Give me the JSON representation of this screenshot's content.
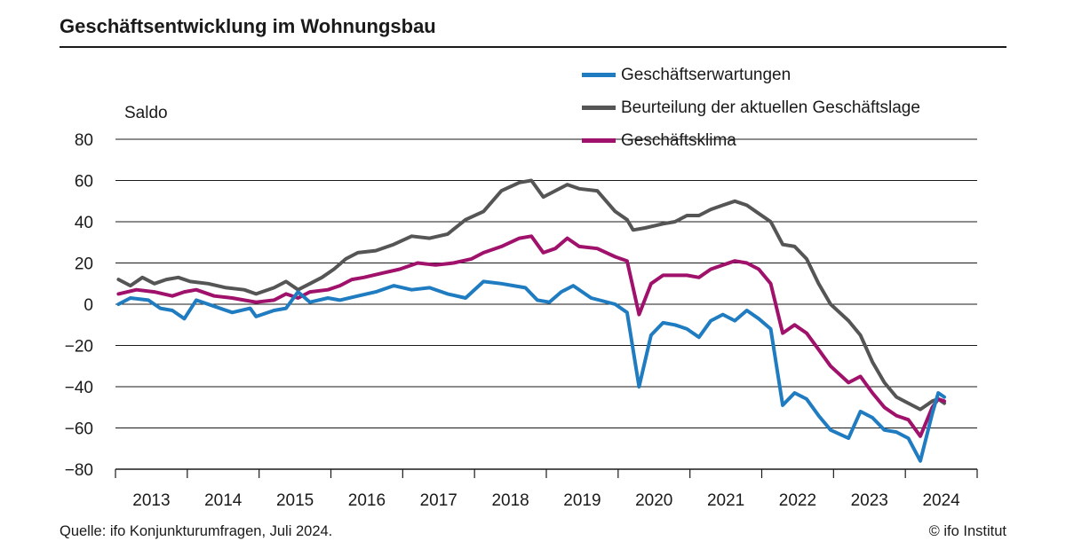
{
  "title": "Geschäftsentwicklung im Wohnungsbau",
  "source": "Quelle: ifo Konjunkturumfragen, Juli 2024.",
  "copyright": "© ifo Institut",
  "chart_data": {
    "type": "line",
    "ylabel": "Saldo",
    "xlabel": "",
    "ylim": [
      -80,
      80
    ],
    "y_ticks": [
      80,
      60,
      40,
      20,
      0,
      -20,
      -40,
      -60,
      -80
    ],
    "x_ticks": [
      "2013",
      "2014",
      "2015",
      "2016",
      "2017",
      "2018",
      "2019",
      "2020",
      "2021",
      "2022",
      "2023",
      "2024"
    ],
    "xlim": [
      "2013-01",
      "2024-12"
    ],
    "grid": "horizontal",
    "legend_position": "top-right",
    "series": [
      {
        "name": "Beurteilung der aktuellen Geschäftslage",
        "color": "#555555",
        "points": [
          [
            "2013-01",
            12
          ],
          [
            "2013-03",
            9
          ],
          [
            "2013-05",
            13
          ],
          [
            "2013-07",
            10
          ],
          [
            "2013-09",
            12
          ],
          [
            "2013-11",
            13
          ],
          [
            "2014-01",
            11
          ],
          [
            "2014-04",
            10
          ],
          [
            "2014-07",
            8
          ],
          [
            "2014-10",
            7
          ],
          [
            "2014-12",
            5
          ],
          [
            "2015-03",
            8
          ],
          [
            "2015-05",
            11
          ],
          [
            "2015-07",
            7
          ],
          [
            "2015-09",
            10
          ],
          [
            "2015-11",
            13
          ],
          [
            "2016-01",
            17
          ],
          [
            "2016-03",
            22
          ],
          [
            "2016-05",
            25
          ],
          [
            "2016-08",
            26
          ],
          [
            "2016-11",
            29
          ],
          [
            "2017-02",
            33
          ],
          [
            "2017-05",
            32
          ],
          [
            "2017-08",
            34
          ],
          [
            "2017-11",
            41
          ],
          [
            "2018-02",
            45
          ],
          [
            "2018-05",
            55
          ],
          [
            "2018-08",
            59
          ],
          [
            "2018-10",
            60
          ],
          [
            "2018-12",
            52
          ],
          [
            "2019-02",
            55
          ],
          [
            "2019-04",
            58
          ],
          [
            "2019-06",
            56
          ],
          [
            "2019-09",
            55
          ],
          [
            "2019-12",
            45
          ],
          [
            "2020-02",
            41
          ],
          [
            "2020-03",
            36
          ],
          [
            "2020-05",
            37
          ],
          [
            "2020-08",
            39
          ],
          [
            "2020-10",
            40
          ],
          [
            "2020-12",
            43
          ],
          [
            "2021-02",
            43
          ],
          [
            "2021-04",
            46
          ],
          [
            "2021-06",
            48
          ],
          [
            "2021-08",
            50
          ],
          [
            "2021-10",
            48
          ],
          [
            "2021-12",
            44
          ],
          [
            "2022-02",
            40
          ],
          [
            "2022-04",
            29
          ],
          [
            "2022-06",
            28
          ],
          [
            "2022-08",
            22
          ],
          [
            "2022-10",
            10
          ],
          [
            "2022-12",
            0
          ],
          [
            "2023-03",
            -8
          ],
          [
            "2023-05",
            -15
          ],
          [
            "2023-07",
            -28
          ],
          [
            "2023-09",
            -38
          ],
          [
            "2023-11",
            -45
          ],
          [
            "2024-01",
            -48
          ],
          [
            "2024-03",
            -51
          ],
          [
            "2024-05",
            -47
          ],
          [
            "2024-06",
            -46
          ],
          [
            "2024-07",
            -48
          ]
        ]
      },
      {
        "name": "Geschäftsklima",
        "color": "#a0116b",
        "points": [
          [
            "2013-01",
            5
          ],
          [
            "2013-04",
            7
          ],
          [
            "2013-07",
            6
          ],
          [
            "2013-10",
            4
          ],
          [
            "2013-12",
            6
          ],
          [
            "2014-02",
            7
          ],
          [
            "2014-05",
            4
          ],
          [
            "2014-08",
            3
          ],
          [
            "2014-10",
            2
          ],
          [
            "2014-12",
            1
          ],
          [
            "2015-03",
            2
          ],
          [
            "2015-05",
            5
          ],
          [
            "2015-07",
            3
          ],
          [
            "2015-09",
            6
          ],
          [
            "2015-12",
            7
          ],
          [
            "2016-02",
            9
          ],
          [
            "2016-04",
            12
          ],
          [
            "2016-06",
            13
          ],
          [
            "2016-09",
            15
          ],
          [
            "2016-12",
            17
          ],
          [
            "2017-03",
            20
          ],
          [
            "2017-06",
            19
          ],
          [
            "2017-09",
            20
          ],
          [
            "2017-12",
            22
          ],
          [
            "2018-02",
            25
          ],
          [
            "2018-05",
            28
          ],
          [
            "2018-08",
            32
          ],
          [
            "2018-10",
            33
          ],
          [
            "2018-12",
            25
          ],
          [
            "2019-02",
            27
          ],
          [
            "2019-04",
            32
          ],
          [
            "2019-06",
            28
          ],
          [
            "2019-09",
            27
          ],
          [
            "2019-12",
            23
          ],
          [
            "2020-02",
            21
          ],
          [
            "2020-04",
            -5
          ],
          [
            "2020-06",
            10
          ],
          [
            "2020-08",
            14
          ],
          [
            "2020-10",
            14
          ],
          [
            "2020-12",
            14
          ],
          [
            "2021-02",
            13
          ],
          [
            "2021-04",
            17
          ],
          [
            "2021-06",
            19
          ],
          [
            "2021-08",
            21
          ],
          [
            "2021-10",
            20
          ],
          [
            "2021-12",
            17
          ],
          [
            "2022-02",
            10
          ],
          [
            "2022-04",
            -14
          ],
          [
            "2022-06",
            -10
          ],
          [
            "2022-08",
            -14
          ],
          [
            "2022-10",
            -22
          ],
          [
            "2022-12",
            -30
          ],
          [
            "2023-03",
            -38
          ],
          [
            "2023-05",
            -35
          ],
          [
            "2023-07",
            -43
          ],
          [
            "2023-09",
            -50
          ],
          [
            "2023-11",
            -54
          ],
          [
            "2024-01",
            -56
          ],
          [
            "2024-03",
            -64
          ],
          [
            "2024-05",
            -50
          ],
          [
            "2024-06",
            -46
          ],
          [
            "2024-07",
            -47
          ]
        ]
      },
      {
        "name": "Geschäftserwartungen",
        "color": "#1f7cc1",
        "points": [
          [
            "2013-01",
            0
          ],
          [
            "2013-03",
            3
          ],
          [
            "2013-06",
            2
          ],
          [
            "2013-08",
            -2
          ],
          [
            "2013-10",
            -3
          ],
          [
            "2013-12",
            -7
          ],
          [
            "2014-02",
            2
          ],
          [
            "2014-05",
            -1
          ],
          [
            "2014-08",
            -4
          ],
          [
            "2014-11",
            -2
          ],
          [
            "2014-12",
            -6
          ],
          [
            "2015-03",
            -3
          ],
          [
            "2015-05",
            -2
          ],
          [
            "2015-07",
            6
          ],
          [
            "2015-09",
            1
          ],
          [
            "2015-12",
            3
          ],
          [
            "2016-02",
            2
          ],
          [
            "2016-05",
            4
          ],
          [
            "2016-08",
            6
          ],
          [
            "2016-11",
            9
          ],
          [
            "2017-02",
            7
          ],
          [
            "2017-05",
            8
          ],
          [
            "2017-08",
            5
          ],
          [
            "2017-11",
            3
          ],
          [
            "2018-02",
            11
          ],
          [
            "2018-05",
            10
          ],
          [
            "2018-07",
            9
          ],
          [
            "2018-09",
            8
          ],
          [
            "2018-11",
            2
          ],
          [
            "2019-01",
            1
          ],
          [
            "2019-03",
            6
          ],
          [
            "2019-05",
            9
          ],
          [
            "2019-08",
            3
          ],
          [
            "2019-12",
            0
          ],
          [
            "2020-02",
            -4
          ],
          [
            "2020-04",
            -40
          ],
          [
            "2020-06",
            -15
          ],
          [
            "2020-08",
            -9
          ],
          [
            "2020-10",
            -10
          ],
          [
            "2020-12",
            -12
          ],
          [
            "2021-02",
            -16
          ],
          [
            "2021-04",
            -8
          ],
          [
            "2021-06",
            -5
          ],
          [
            "2021-08",
            -8
          ],
          [
            "2021-10",
            -3
          ],
          [
            "2021-12",
            -7
          ],
          [
            "2022-02",
            -12
          ],
          [
            "2022-04",
            -49
          ],
          [
            "2022-06",
            -43
          ],
          [
            "2022-08",
            -46
          ],
          [
            "2022-10",
            -54
          ],
          [
            "2022-12",
            -61
          ],
          [
            "2023-03",
            -65
          ],
          [
            "2023-05",
            -52
          ],
          [
            "2023-07",
            -55
          ],
          [
            "2023-09",
            -61
          ],
          [
            "2023-11",
            -62
          ],
          [
            "2024-01",
            -65
          ],
          [
            "2024-03",
            -76
          ],
          [
            "2024-05",
            -53
          ],
          [
            "2024-06",
            -43
          ],
          [
            "2024-07",
            -45
          ]
        ]
      }
    ]
  }
}
